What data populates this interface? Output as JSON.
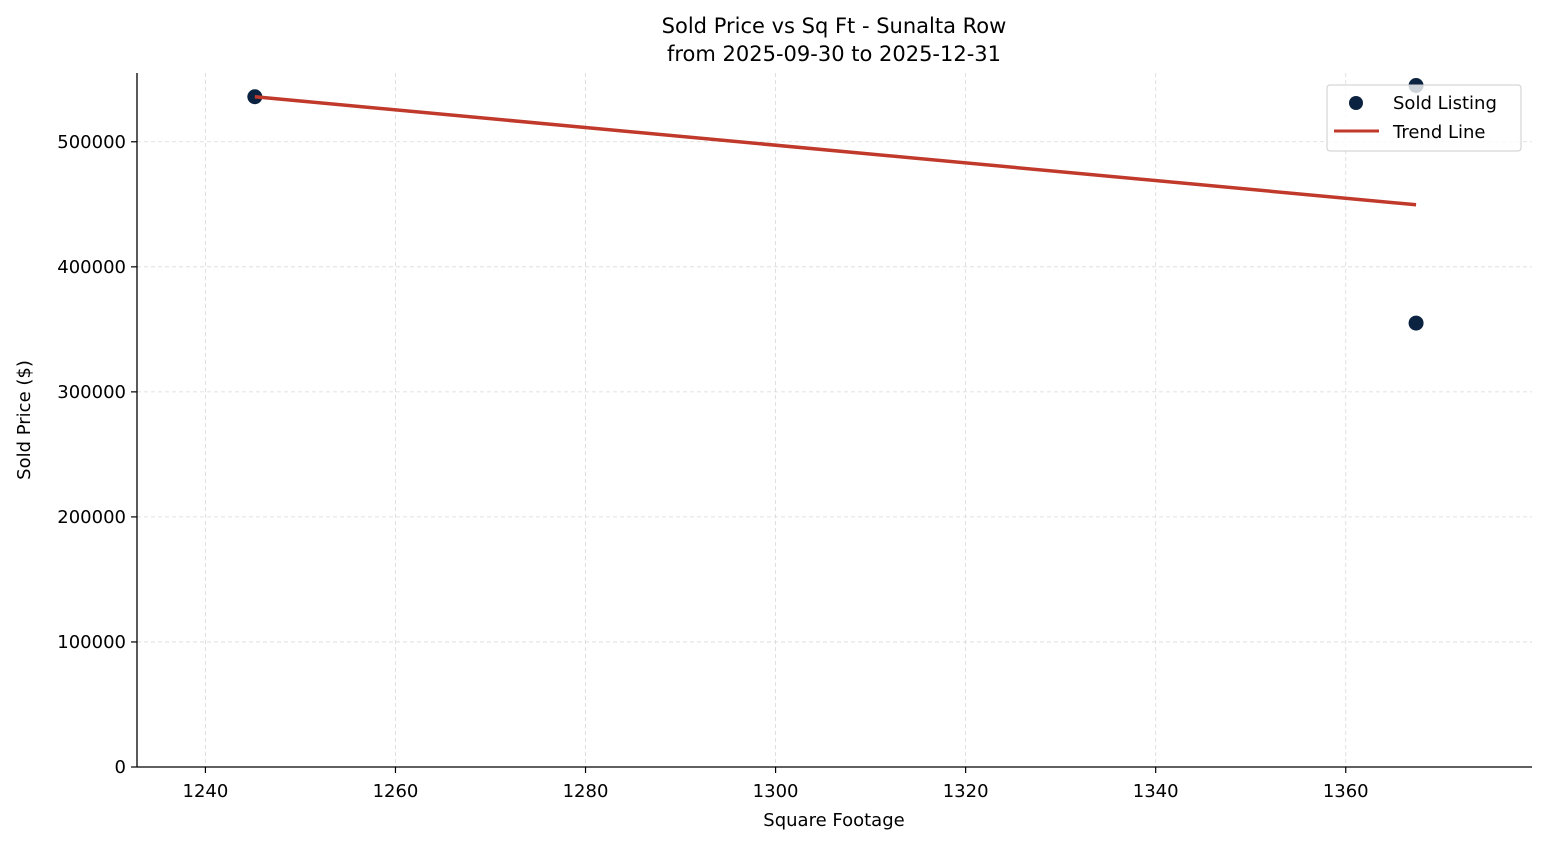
{
  "chart_data": {
    "type": "scatter",
    "title": "Sold Price vs Sq Ft - Sunalta Row",
    "subtitle": "from 2025-09-30 to 2025-12-31",
    "xlabel": "Square Footage",
    "ylabel": "Sold Price ($)",
    "xlim": [
      1232.8,
      1379.6
    ],
    "ylim": [
      0,
      555000
    ],
    "xticks": [
      1240,
      1260,
      1280,
      1300,
      1320,
      1340,
      1360
    ],
    "yticks": [
      0,
      100000,
      200000,
      300000,
      400000,
      500000
    ],
    "xtick_labels": [
      "1240",
      "1260",
      "1280",
      "1300",
      "1320",
      "1340",
      "1360"
    ],
    "ytick_labels": [
      "0",
      "100000",
      "200000",
      "300000",
      "400000",
      "500000"
    ],
    "grid": true,
    "legend_position": "top-right",
    "series": [
      {
        "name": "Sold Listing",
        "type": "scatter",
        "color": "#0b2341",
        "x": [
          1245.2,
          1367.4,
          1367.4
        ],
        "y": [
          536000,
          545000,
          355000
        ]
      },
      {
        "name": "Trend Line",
        "type": "line",
        "color": "#c0392b",
        "x": [
          1245.2,
          1367.4
        ],
        "y": [
          536000,
          449600
        ]
      }
    ]
  }
}
